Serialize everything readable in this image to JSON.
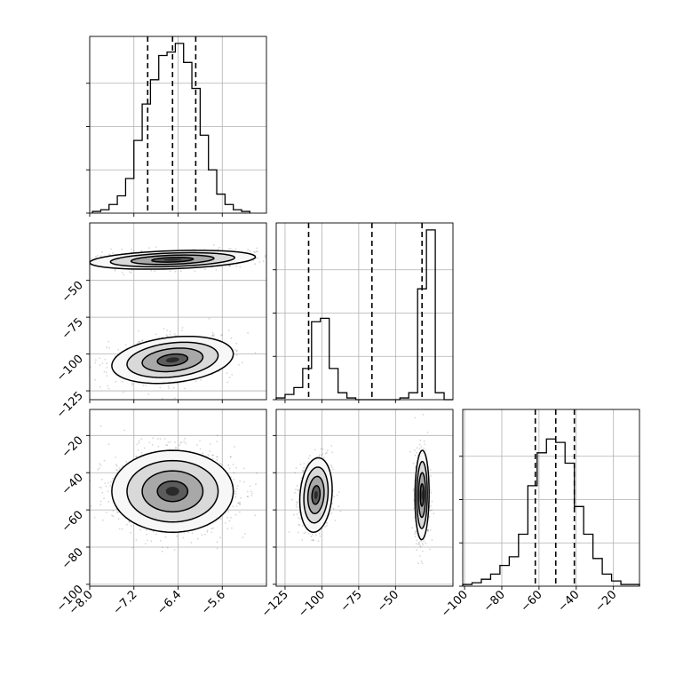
{
  "chart_data": {
    "type": "corner",
    "description": "Corner plot of 3 parameters: 1D marginal histograms on the diagonal with dashed quantile lines, 2D density contours with scatter points below the diagonal.",
    "parameters": [
      {
        "index": 0,
        "range": [
          -8.0,
          -4.8
        ],
        "ticks": [
          -8.0,
          -7.2,
          -6.4,
          -5.6
        ],
        "tick_labels": [
          "−8.0",
          "−7.2",
          "−6.4",
          "−5.6"
        ]
      },
      {
        "index": 1,
        "range": [
          -131,
          -11
        ],
        "ticks": [
          -125,
          -100,
          -75,
          -50
        ],
        "tick_labels": [
          "−125",
          "−100",
          "−75",
          "−50"
        ]
      },
      {
        "index": 2,
        "range": [
          -101,
          -6
        ],
        "ticks": [
          -100,
          -80,
          -60,
          -40,
          -20
        ],
        "tick_labels": [
          "−100",
          "−80",
          "−60",
          "−40",
          "−20"
        ]
      }
    ],
    "histograms": [
      {
        "param": 0,
        "bin_edges": [
          -7.95,
          -7.8,
          -7.65,
          -7.5,
          -7.35,
          -7.2,
          -7.05,
          -6.9,
          -6.75,
          -6.6,
          -6.45,
          -6.3,
          -6.15,
          -6.0,
          -5.85,
          -5.7,
          -5.55,
          -5.4,
          -5.25,
          -5.1
        ],
        "counts": [
          0.01,
          0.02,
          0.05,
          0.1,
          0.2,
          0.42,
          0.63,
          0.77,
          0.91,
          0.93,
          0.98,
          0.87,
          0.72,
          0.45,
          0.25,
          0.11,
          0.05,
          0.02,
          0.01
        ],
        "quantiles": [
          -6.95,
          -6.5,
          -6.08
        ]
      },
      {
        "param": 1,
        "bin_edges": [
          -131,
          -125,
          -119,
          -113,
          -107,
          -101,
          -95,
          -89,
          -83,
          -77,
          -71,
          -65,
          -59,
          -53,
          -47,
          -41,
          -35,
          -29,
          -23,
          -17,
          -11
        ],
        "counts": [
          0.01,
          0.03,
          0.07,
          0.18,
          0.45,
          0.47,
          0.18,
          0.04,
          0.01,
          0,
          0,
          0,
          0,
          0,
          0.01,
          0.04,
          0.64,
          0.98,
          0.04,
          0
        ],
        "quantiles": [
          -109,
          -66,
          -32
        ]
      },
      {
        "param": 2,
        "bin_edges": [
          -101,
          -96,
          -91,
          -86,
          -81,
          -76,
          -71,
          -66,
          -61,
          -56,
          -51,
          -46,
          -41,
          -36,
          -31,
          -26,
          -21,
          -16,
          -11,
          -6
        ],
        "counts": [
          0.01,
          0.02,
          0.04,
          0.07,
          0.12,
          0.17,
          0.3,
          0.58,
          0.77,
          0.85,
          0.83,
          0.71,
          0.46,
          0.3,
          0.16,
          0.07,
          0.03,
          0.01,
          0.01
        ],
        "quantiles": [
          -62,
          -51,
          -41
        ]
      }
    ],
    "joint_panels": [
      {
        "x_param": 0,
        "y_param": 1,
        "modes": [
          {
            "center": [
              -6.5,
              -36
            ],
            "sigma": [
              0.75,
              3.2
            ],
            "rho": 0.3,
            "weight": 0.5
          },
          {
            "center": [
              -6.5,
              -104
            ],
            "sigma": [
              0.55,
              8.0
            ],
            "rho": 0.25,
            "weight": 0.5
          }
        ]
      },
      {
        "x_param": 0,
        "y_param": 2,
        "modes": [
          {
            "center": [
              -6.5,
              -50
            ],
            "sigma": [
              0.55,
              11
            ],
            "rho": 0.0,
            "weight": 1.0
          }
        ]
      },
      {
        "x_param": 1,
        "y_param": 2,
        "modes": [
          {
            "center": [
              -104,
              -52
            ],
            "sigma": [
              5.5,
              10
            ],
            "rho": 0.15,
            "weight": 0.5
          },
          {
            "center": [
              -32,
              -52
            ],
            "sigma": [
              2.4,
              12
            ],
            "rho": 0.05,
            "weight": 0.5
          }
        ]
      }
    ],
    "line_color": "#000000",
    "scatter_color": "#444444",
    "grid": true
  }
}
